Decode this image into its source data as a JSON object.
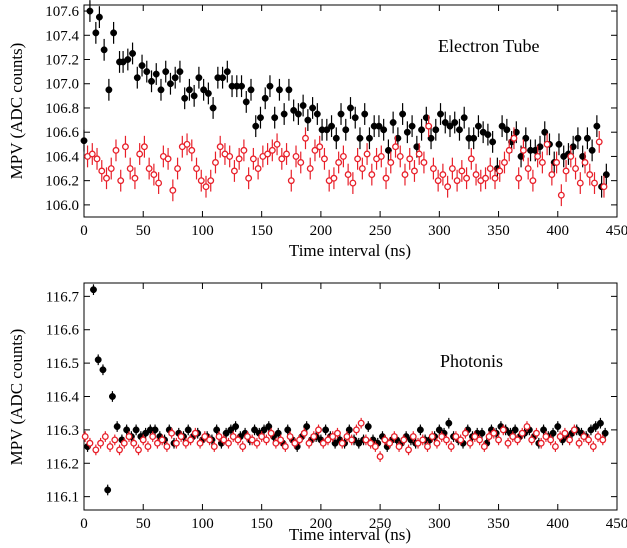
{
  "chart_data": [
    {
      "type": "scatter",
      "title": "Electron Tube",
      "xlabel": "Time interval (ns)",
      "ylabel": "MPV (ADC counts)",
      "xlim": [
        0,
        450
      ],
      "ylim": [
        105.9,
        107.65
      ],
      "xticks": [
        0,
        50,
        100,
        150,
        200,
        250,
        300,
        350,
        400,
        450
      ],
      "xtick_labels": [
        "0",
        "50",
        "100",
        "150",
        "200",
        "250",
        "300",
        "350",
        "400",
        "450"
      ],
      "yticks": [
        106.0,
        106.2,
        106.4,
        106.6,
        106.8,
        107.0,
        107.2,
        107.4,
        107.6
      ],
      "ytick_labels": [
        "106.0",
        "106.2",
        "106.4",
        "106.6",
        "106.8",
        "107.0",
        "107.2",
        "107.4",
        "107.6"
      ],
      "grid": false,
      "series": [
        {
          "color": "#000000",
          "marker": "filled-circle",
          "x": [
            0,
            5,
            10,
            13,
            17,
            21,
            25,
            30,
            33,
            37,
            41,
            45,
            49,
            53,
            57,
            61,
            65,
            69,
            73,
            77,
            81,
            85,
            89,
            93,
            97,
            101,
            105,
            109,
            113,
            117,
            121,
            125,
            129,
            133,
            137,
            141,
            145,
            149,
            153,
            157,
            161,
            165,
            169,
            173,
            177,
            181,
            185,
            189,
            193,
            197,
            201,
            205,
            209,
            213,
            217,
            221,
            225,
            229,
            233,
            237,
            241,
            245,
            249,
            253,
            257,
            261,
            265,
            269,
            273,
            277,
            281,
            285,
            289,
            293,
            297,
            301,
            305,
            309,
            313,
            317,
            321,
            325,
            329,
            333,
            337,
            341,
            345,
            349,
            353,
            357,
            361,
            365,
            369,
            373,
            377,
            381,
            385,
            389,
            393,
            397,
            401,
            405,
            409,
            413,
            417,
            421,
            425,
            429,
            433,
            437,
            441
          ],
          "y": [
            106.53,
            107.6,
            107.42,
            107.55,
            107.28,
            106.95,
            107.42,
            107.18,
            107.18,
            107.2,
            107.25,
            107.05,
            107.15,
            107.1,
            107.02,
            107.08,
            106.95,
            107.1,
            107.0,
            107.05,
            107.1,
            106.88,
            106.95,
            106.9,
            107.05,
            106.95,
            106.92,
            106.8,
            107.05,
            107.05,
            107.1,
            106.98,
            106.98,
            106.98,
            106.85,
            106.95,
            106.65,
            106.72,
            106.88,
            106.98,
            106.72,
            106.95,
            106.75,
            106.95,
            106.78,
            106.75,
            106.82,
            106.7,
            106.8,
            106.75,
            106.62,
            106.62,
            106.65,
            106.55,
            106.75,
            106.62,
            106.8,
            106.72,
            106.55,
            106.75,
            106.55,
            106.65,
            106.65,
            106.62,
            106.45,
            106.68,
            106.55,
            106.75,
            106.6,
            106.65,
            106.48,
            106.62,
            106.72,
            106.55,
            106.62,
            106.75,
            106.68,
            106.65,
            106.68,
            106.62,
            106.72,
            106.55,
            106.55,
            106.65,
            106.6,
            106.58,
            106.52,
            106.3,
            106.65,
            106.62,
            106.52,
            106.6,
            106.4,
            106.55,
            106.45,
            106.45,
            106.48,
            106.6,
            106.5,
            106.35,
            106.5,
            106.4,
            106.42,
            106.48,
            106.55,
            106.4,
            106.55,
            106.45,
            106.65,
            106.15,
            106.25
          ],
          "y_err": 0.09
        },
        {
          "color": "#e8202a",
          "marker": "open-circle",
          "x": [
            3,
            7,
            11,
            15,
            19,
            23,
            27,
            31,
            35,
            39,
            43,
            47,
            51,
            55,
            59,
            63,
            67,
            71,
            75,
            79,
            83,
            87,
            91,
            95,
            99,
            103,
            107,
            111,
            115,
            119,
            123,
            127,
            131,
            135,
            139,
            143,
            147,
            151,
            155,
            159,
            163,
            167,
            171,
            175,
            179,
            183,
            187,
            191,
            195,
            199,
            203,
            207,
            211,
            215,
            219,
            223,
            227,
            231,
            235,
            239,
            243,
            247,
            251,
            255,
            259,
            263,
            267,
            271,
            275,
            279,
            283,
            287,
            291,
            295,
            299,
            303,
            307,
            311,
            315,
            319,
            323,
            327,
            331,
            335,
            339,
            343,
            347,
            351,
            355,
            359,
            363,
            367,
            371,
            375,
            379,
            383,
            387,
            391,
            395,
            399,
            403,
            407,
            411,
            415,
            419,
            423,
            427,
            431,
            435,
            439
          ],
          "y": [
            106.4,
            106.42,
            106.38,
            106.28,
            106.22,
            106.3,
            106.45,
            106.2,
            106.48,
            106.3,
            106.22,
            106.42,
            106.48,
            106.3,
            106.25,
            106.18,
            106.4,
            106.38,
            106.12,
            106.3,
            106.48,
            106.5,
            106.45,
            106.3,
            106.2,
            106.15,
            106.2,
            106.35,
            106.48,
            106.42,
            106.4,
            106.28,
            106.38,
            106.45,
            106.22,
            106.38,
            106.3,
            106.4,
            106.42,
            106.45,
            106.5,
            106.38,
            106.42,
            106.2,
            106.4,
            106.35,
            106.55,
            106.3,
            106.45,
            106.48,
            106.38,
            106.2,
            106.22,
            106.35,
            106.4,
            106.25,
            106.18,
            106.38,
            106.3,
            106.42,
            106.25,
            106.38,
            106.4,
            106.22,
            106.35,
            106.48,
            106.4,
            106.25,
            106.38,
            106.28,
            106.42,
            106.35,
            106.65,
            106.3,
            106.2,
            106.25,
            106.15,
            106.3,
            106.2,
            106.28,
            106.22,
            106.38,
            106.25,
            106.2,
            106.22,
            106.3,
            106.22,
            106.28,
            106.35,
            106.45,
            106.55,
            106.22,
            106.45,
            106.3,
            106.2,
            106.4,
            106.35,
            106.5,
            106.25,
            106.35,
            106.08,
            106.28,
            106.4,
            106.3,
            106.18,
            106.35,
            106.25,
            106.18,
            106.52,
            106.15
          ],
          "y_err": 0.09
        }
      ]
    },
    {
      "type": "scatter",
      "title": "Photonis",
      "xlabel": "Time interval (ns)",
      "ylabel": "MPV (ADC counts)",
      "xlim": [
        0,
        450
      ],
      "ylim": [
        116.06,
        116.74
      ],
      "xticks": [
        0,
        50,
        100,
        150,
        200,
        250,
        300,
        350,
        400,
        450
      ],
      "xtick_labels": [
        "0",
        "50",
        "100",
        "150",
        "200",
        "250",
        "300",
        "350",
        "400",
        "450"
      ],
      "yticks": [
        116.1,
        116.2,
        116.3,
        116.4,
        116.5,
        116.6,
        116.7
      ],
      "ytick_labels": [
        "116.1",
        "116.2",
        "116.3",
        "116.4",
        "116.5",
        "116.6",
        "116.7"
      ],
      "grid": false,
      "series": [
        {
          "color": "#000000",
          "marker": "filled-circle",
          "x": [
            3,
            8,
            12,
            16,
            20,
            24,
            28,
            32,
            36,
            40,
            44,
            48,
            52,
            56,
            60,
            64,
            68,
            72,
            76,
            80,
            84,
            88,
            92,
            96,
            100,
            104,
            108,
            112,
            116,
            120,
            124,
            128,
            132,
            136,
            140,
            144,
            148,
            152,
            156,
            160,
            164,
            168,
            172,
            176,
            180,
            184,
            188,
            192,
            196,
            200,
            204,
            208,
            212,
            216,
            220,
            224,
            228,
            232,
            236,
            240,
            244,
            248,
            252,
            256,
            260,
            264,
            268,
            272,
            276,
            280,
            284,
            288,
            292,
            296,
            300,
            304,
            308,
            312,
            316,
            320,
            324,
            328,
            332,
            336,
            340,
            344,
            348,
            352,
            356,
            360,
            364,
            368,
            372,
            376,
            380,
            384,
            388,
            392,
            396,
            400,
            404,
            408,
            412,
            416,
            420,
            424,
            428,
            432,
            436,
            440
          ],
          "y": [
            116.25,
            116.72,
            116.51,
            116.48,
            116.12,
            116.4,
            116.31,
            116.27,
            116.3,
            116.28,
            116.3,
            116.28,
            116.29,
            116.3,
            116.3,
            116.28,
            116.27,
            116.3,
            116.26,
            116.29,
            116.28,
            116.3,
            116.28,
            116.29,
            116.27,
            116.28,
            116.27,
            116.3,
            116.26,
            116.29,
            116.3,
            116.31,
            116.28,
            116.29,
            116.27,
            116.3,
            116.29,
            116.3,
            116.31,
            116.28,
            116.29,
            116.26,
            116.3,
            116.27,
            116.25,
            116.28,
            116.31,
            116.27,
            116.28,
            116.27,
            116.3,
            116.28,
            116.26,
            116.27,
            116.26,
            116.3,
            116.27,
            116.26,
            116.27,
            116.31,
            116.27,
            116.26,
            116.28,
            116.25,
            116.27,
            116.27,
            116.26,
            116.28,
            116.27,
            116.26,
            116.3,
            116.27,
            116.27,
            116.28,
            116.3,
            116.29,
            116.32,
            116.28,
            116.27,
            116.26,
            116.3,
            116.28,
            116.29,
            116.29,
            116.26,
            116.3,
            116.29,
            116.31,
            116.3,
            116.29,
            116.3,
            116.28,
            116.29,
            116.3,
            116.28,
            116.26,
            116.3,
            116.28,
            116.29,
            116.31,
            116.27,
            116.28,
            116.29,
            116.3,
            116.29,
            116.28,
            116.3,
            116.31,
            116.32,
            116.29
          ],
          "y_err": 0.016
        },
        {
          "color": "#e8202a",
          "marker": "open-circle",
          "x": [
            1,
            5,
            10,
            14,
            18,
            22,
            26,
            30,
            34,
            38,
            42,
            46,
            50,
            54,
            58,
            62,
            66,
            70,
            74,
            78,
            82,
            86,
            90,
            94,
            98,
            102,
            106,
            110,
            114,
            118,
            122,
            126,
            130,
            134,
            138,
            142,
            146,
            150,
            154,
            158,
            162,
            166,
            170,
            174,
            178,
            182,
            186,
            190,
            194,
            198,
            202,
            206,
            210,
            214,
            218,
            222,
            226,
            230,
            234,
            238,
            242,
            246,
            250,
            254,
            258,
            262,
            266,
            270,
            274,
            278,
            282,
            286,
            290,
            294,
            298,
            302,
            306,
            310,
            314,
            318,
            322,
            326,
            330,
            334,
            338,
            342,
            346,
            350,
            354,
            358,
            362,
            366,
            370,
            374,
            378,
            382,
            386,
            390,
            394,
            398,
            402,
            406,
            410,
            414,
            418,
            422,
            426,
            430,
            434,
            438
          ],
          "y": [
            116.28,
            116.26,
            116.24,
            116.26,
            116.28,
            116.25,
            116.27,
            116.24,
            116.26,
            116.28,
            116.26,
            116.24,
            116.27,
            116.25,
            116.28,
            116.26,
            116.27,
            116.25,
            116.29,
            116.26,
            116.28,
            116.26,
            116.27,
            116.29,
            116.26,
            116.28,
            116.27,
            116.25,
            116.28,
            116.27,
            116.26,
            116.28,
            116.27,
            116.25,
            116.28,
            116.27,
            116.26,
            116.28,
            116.27,
            116.29,
            116.26,
            116.27,
            116.25,
            116.28,
            116.26,
            116.27,
            116.29,
            116.26,
            116.28,
            116.3,
            116.26,
            116.27,
            116.28,
            116.29,
            116.26,
            116.28,
            116.27,
            116.3,
            116.32,
            116.27,
            116.26,
            116.25,
            116.22,
            116.27,
            116.26,
            116.28,
            116.25,
            116.27,
            116.24,
            116.28,
            116.26,
            116.27,
            116.25,
            116.28,
            116.26,
            116.28,
            116.27,
            116.25,
            116.28,
            116.27,
            116.29,
            116.26,
            116.28,
            116.27,
            116.25,
            116.28,
            116.29,
            116.27,
            116.3,
            116.26,
            116.28,
            116.27,
            116.29,
            116.31,
            116.27,
            116.29,
            116.26,
            116.28,
            116.27,
            116.25,
            116.28,
            116.29,
            116.27,
            116.3,
            116.26,
            116.28,
            116.27,
            116.25,
            116.28,
            116.27
          ],
          "y_err": 0.016
        }
      ]
    }
  ]
}
